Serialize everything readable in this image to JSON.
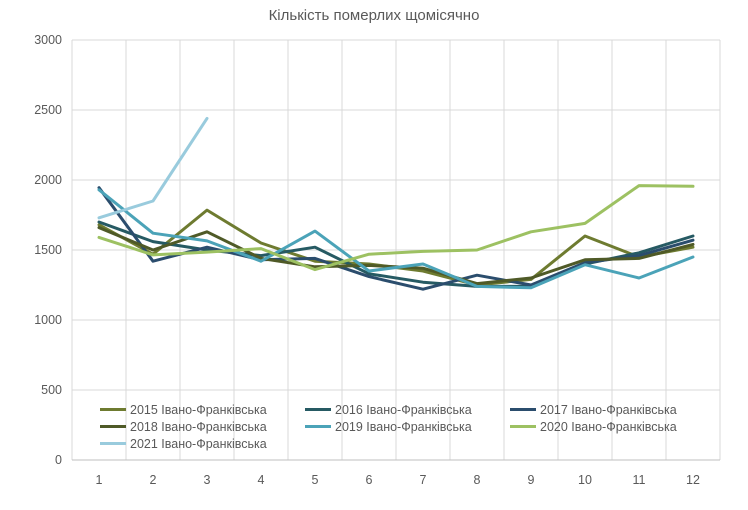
{
  "header": {
    "title": "Кількість померлих щомісячно"
  },
  "axes": {
    "yticks": [
      "0",
      "500",
      "1000",
      "1500",
      "2000",
      "2500",
      "3000"
    ],
    "xticks": [
      "1",
      "2",
      "3",
      "4",
      "5",
      "6",
      "7",
      "8",
      "9",
      "10",
      "11",
      "12"
    ]
  },
  "colors": {
    "grid": "#D9D9D9",
    "axis": "#BFBFBF",
    "text": "#595959"
  },
  "chart_data": {
    "type": "line",
    "title": "Кількість померлих щомісячно",
    "xlabel": "",
    "ylabel": "",
    "categories": [
      1,
      2,
      3,
      4,
      5,
      6,
      7,
      8,
      9,
      10,
      11,
      12
    ],
    "ylim": [
      0,
      3000
    ],
    "ytick_step": 500,
    "grid": true,
    "legend_position": "bottom-left",
    "series": [
      {
        "name": "2015 Івано-Франківська",
        "color": "#6E7B30",
        "values": [
          1680,
          1470,
          1785,
          1550,
          1420,
          1400,
          1350,
          1250,
          1290,
          1600,
          1450,
          1520
        ]
      },
      {
        "name": "2016 Івано-Франківська",
        "color": "#265A63",
        "values": [
          1700,
          1560,
          1500,
          1460,
          1520,
          1330,
          1270,
          1240,
          1240,
          1400,
          1480,
          1600
        ]
      },
      {
        "name": "2017 Івано-Франківська",
        "color": "#2B4D6D",
        "values": [
          1945,
          1420,
          1520,
          1430,
          1440,
          1310,
          1220,
          1320,
          1250,
          1410,
          1460,
          1570
        ]
      },
      {
        "name": "2018 Івано-Франківська",
        "color": "#4F5A27",
        "values": [
          1660,
          1500,
          1630,
          1440,
          1380,
          1390,
          1370,
          1260,
          1300,
          1430,
          1440,
          1540
        ]
      },
      {
        "name": "2019 Івано-Франківська",
        "color": "#4BA3B8",
        "values": [
          1930,
          1620,
          1565,
          1420,
          1635,
          1350,
          1400,
          1240,
          1230,
          1395,
          1300,
          1450
        ]
      },
      {
        "name": "2020 Івано-Франківська",
        "color": "#9DC162",
        "values": [
          1590,
          1465,
          1485,
          1510,
          1360,
          1470,
          1490,
          1500,
          1630,
          1690,
          1960,
          1955
        ]
      },
      {
        "name": "2021 Івано-Франківська",
        "color": "#99CBDD",
        "values": [
          1730,
          1850,
          2440,
          null,
          null,
          null,
          null,
          null,
          null,
          null,
          null,
          null
        ]
      }
    ]
  }
}
